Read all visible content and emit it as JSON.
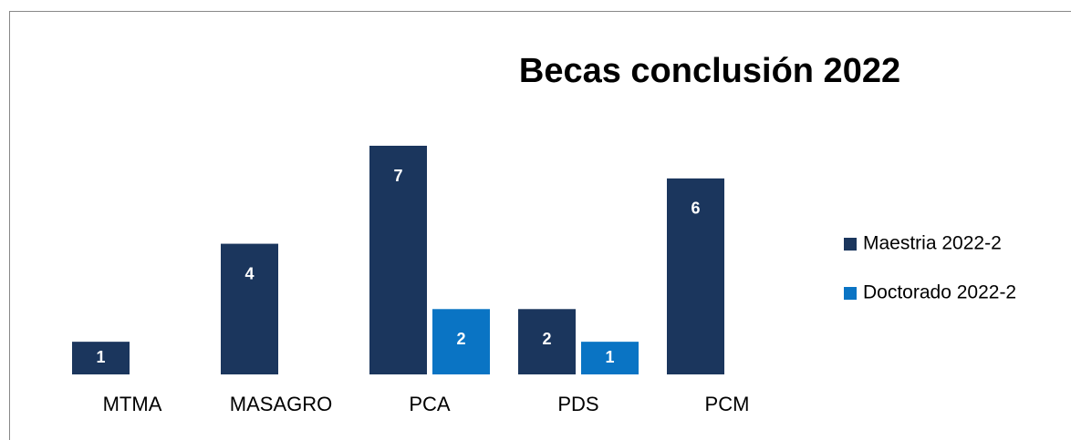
{
  "chart_data": {
    "type": "bar",
    "title": "Becas conclusión 2022",
    "categories": [
      "MTMA",
      "MASAGRO",
      "PCA",
      "PDS",
      "PCM"
    ],
    "series": [
      {
        "name": "Maestria 2022-2",
        "color": "#1b365d",
        "values": [
          1,
          4,
          7,
          2,
          6
        ]
      },
      {
        "name": "Doctorado 2022-2",
        "color": "#0a74c4",
        "values": [
          null,
          null,
          2,
          1,
          null
        ]
      }
    ],
    "ylim": [
      0,
      7
    ],
    "legend": "right"
  }
}
